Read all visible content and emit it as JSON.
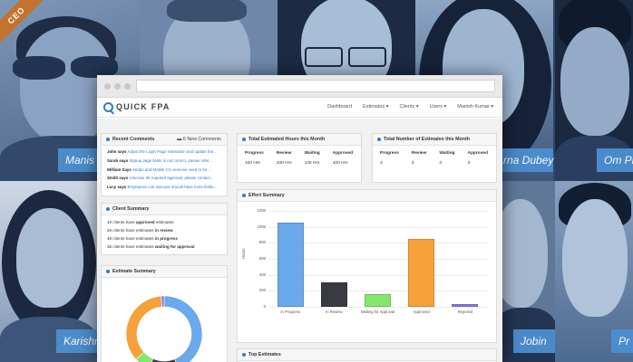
{
  "ribbon": "CEO",
  "team": {
    "names": [
      "Manis",
      "rna Dubey",
      "Om Pr",
      "Karishm",
      "Jobin",
      "Pr"
    ]
  },
  "app": {
    "logo": "QUICK FPA",
    "nav": [
      "Dashboard",
      "Estimates ▾",
      "Clients ▾",
      "Users ▾",
      "Manish Kumar ▾"
    ]
  },
  "recent_comments": {
    "title": "Recent Comments",
    "badge": "6 New Comments",
    "items": [
      {
        "who": "John says",
        "text": "Adjust the Login Page estimation and update the..."
      },
      {
        "who": "Sarah says",
        "text": "Signup page fields is not correct, please refer..."
      },
      {
        "who": "William Says",
        "text": "Sedan and Mobile CS versions need to be..."
      },
      {
        "who": "Smith says",
        "text": "Usecase 39 required approval, please contact..."
      },
      {
        "who": "Lucy says",
        "text": "Employees List usecase should have more fields..."
      }
    ]
  },
  "client_summary": {
    "title": "Client Summary",
    "rows": [
      {
        "pre": "10 clients have ",
        "bold": "approved",
        "post": " estimates"
      },
      {
        "pre": "26 clients have estimates ",
        "bold": "in review",
        "post": ""
      },
      {
        "pre": "48 clients have estimates ",
        "bold": "in progress",
        "post": ""
      },
      {
        "pre": "36 clients have estimates ",
        "bold": "waiting for approval",
        "post": ""
      }
    ]
  },
  "estimate_summary": {
    "title": "Estimate Summary",
    "slices": [
      {
        "label": "In Progress",
        "value": 1050,
        "color": "#6aa9ec"
      },
      {
        "label": "In Review",
        "value": 310,
        "color": "#3a3a44"
      },
      {
        "label": "Waiting for Approval",
        "value": 160,
        "color": "#86e56c"
      },
      {
        "label": "Approved",
        "value": 850,
        "color": "#f6a13a"
      },
      {
        "label": "Rejected",
        "value": 30,
        "color": "#8a78e6"
      }
    ]
  },
  "hours": {
    "title": "Total Estimated Hours this Month",
    "headers": [
      "Progress",
      "Review",
      "Waiting",
      "Approved"
    ],
    "values": [
      "100 Hrs",
      "100 Hrs",
      "130 Hrs",
      "100 Hrs"
    ]
  },
  "counts": {
    "title": "Total Number of Estimates this Month",
    "headers": [
      "Progress",
      "Review",
      "Waiting",
      "Approved"
    ],
    "values": [
      "3",
      "3",
      "3",
      "3"
    ]
  },
  "effort": {
    "title": "Effort Summary"
  },
  "top_estimates": {
    "title": "Top Estimates"
  },
  "chart_data": {
    "type": "bar",
    "title": "Effort Summary",
    "ylabel": "Hours",
    "xlabel": "",
    "categories": [
      "In Progress",
      "In Review",
      "Waiting for Approval",
      "Approved",
      "Rejected"
    ],
    "values": [
      1050,
      310,
      160,
      850,
      30
    ],
    "colors": [
      "#6aa9ec",
      "#3a3a44",
      "#86e56c",
      "#f6a13a",
      "#8a78e6"
    ],
    "ylim": [
      0,
      1200
    ],
    "yticks": [
      0,
      200,
      400,
      600,
      800,
      1000,
      1200
    ],
    "grid": true
  }
}
